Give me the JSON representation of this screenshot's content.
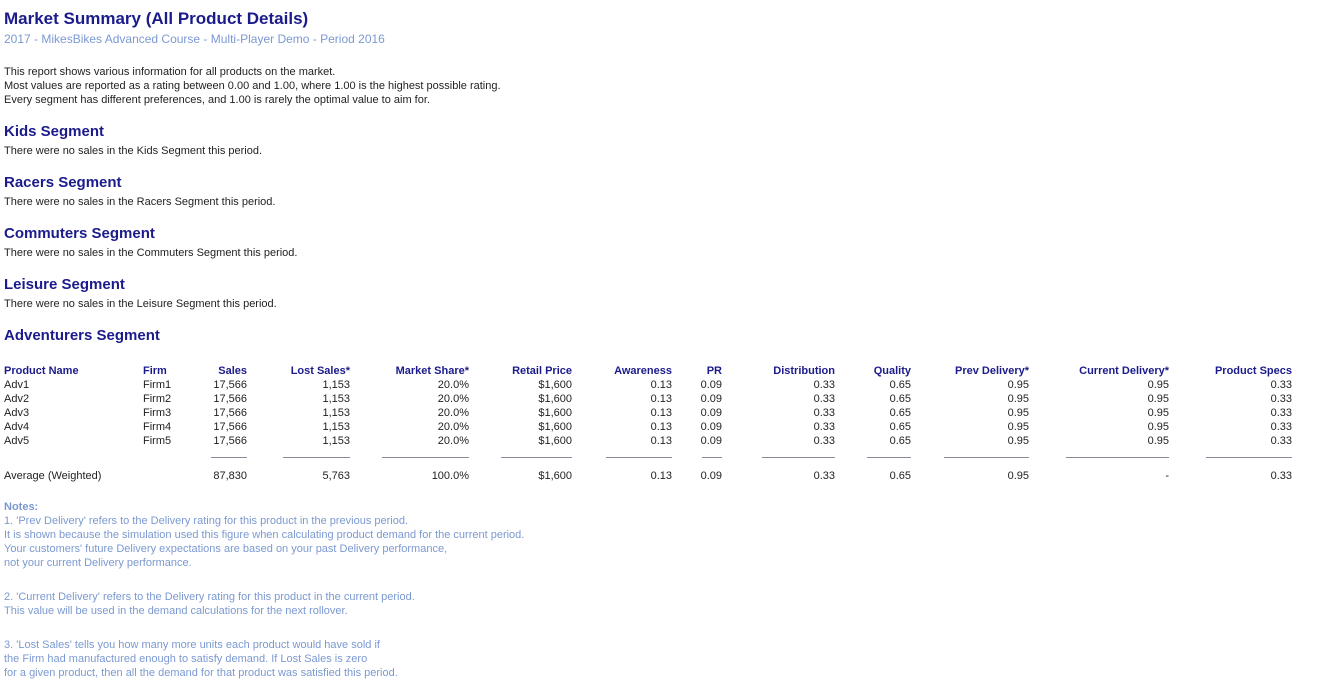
{
  "page": {
    "title": "Market Summary (All Product Details)",
    "subtitle": "2017 - MikesBikes Advanced Course - Multi-Player Demo - Period 2016"
  },
  "intro_lines": [
    "This report shows various information for all products on the market.",
    "Most values are reported as a rating between 0.00 and 1.00, where 1.00 is the highest possible rating.",
    "Every segment has different preferences, and 1.00 is rarely the optimal value to aim for."
  ],
  "empty_segments": [
    {
      "title": "Kids Segment",
      "message": "There were no sales in the Kids Segment this period."
    },
    {
      "title": "Racers Segment",
      "message": "There were no sales in the Racers Segment this period."
    },
    {
      "title": "Commuters Segment",
      "message": "There were no sales in the Commuters Segment this period."
    },
    {
      "title": "Leisure Segment",
      "message": "There were no sales in the Leisure Segment this period."
    }
  ],
  "adventurers": {
    "title": "Adventurers Segment",
    "table": {
      "columns": [
        "Product Name",
        "Firm",
        "Sales",
        "Lost Sales*",
        "Market Share*",
        "Retail Price",
        "Awareness",
        "PR",
        "Distribution",
        "Quality",
        "Prev Delivery*",
        "Current Delivery*",
        "Product Specs"
      ],
      "rows": [
        [
          "Adv1",
          "Firm1",
          "17,566",
          "1,153",
          "20.0%",
          "$1,600",
          "0.13",
          "0.09",
          "0.33",
          "0.65",
          "0.95",
          "0.95",
          "0.33"
        ],
        [
          "Adv2",
          "Firm2",
          "17,566",
          "1,153",
          "20.0%",
          "$1,600",
          "0.13",
          "0.09",
          "0.33",
          "0.65",
          "0.95",
          "0.95",
          "0.33"
        ],
        [
          "Adv3",
          "Firm3",
          "17,566",
          "1,153",
          "20.0%",
          "$1,600",
          "0.13",
          "0.09",
          "0.33",
          "0.65",
          "0.95",
          "0.95",
          "0.33"
        ],
        [
          "Adv4",
          "Firm4",
          "17,566",
          "1,153",
          "20.0%",
          "$1,600",
          "0.13",
          "0.09",
          "0.33",
          "0.65",
          "0.95",
          "0.95",
          "0.33"
        ],
        [
          "Adv5",
          "Firm5",
          "17,566",
          "1,153",
          "20.0%",
          "$1,600",
          "0.13",
          "0.09",
          "0.33",
          "0.65",
          "0.95",
          "0.95",
          "0.33"
        ]
      ],
      "average_row": [
        "Average (Weighted)",
        "",
        "87,830",
        "5,763",
        "100.0%",
        "$1,600",
        "0.13",
        "0.09",
        "0.33",
        "0.65",
        "0.95",
        "-",
        "0.33"
      ]
    }
  },
  "notes": {
    "title": "Notes:",
    "items": [
      {
        "lines": [
          "1. 'Prev Delivery' refers to the Delivery rating for this product in the previous period.",
          "It is shown because the simulation used this figure when calculating product demand for the current period.",
          "Your customers' future Delivery expectations are based on your past Delivery performance,",
          "not your current Delivery performance."
        ]
      },
      {
        "lines": [
          "2. 'Current Delivery' refers to the Delivery rating for this product in the current period.",
          "This value will be used in the demand calculations for the next rollover."
        ]
      },
      {
        "lines": [
          "3. 'Lost Sales' tells you how many more units each product would have sold if",
          "the Firm had manufactured enough to satisfy demand. If Lost Sales is zero",
          "for a given product, then all the demand for that product was satisfied this period."
        ]
      }
    ]
  },
  "colors": {
    "heading_text": "#1b1b8c",
    "subtitle_text": "#7b99d1",
    "notes_text": "#7b99d1",
    "body_text": "#1f1f1f",
    "separator_line": "#8a8a9a",
    "background": "#ffffff"
  }
}
